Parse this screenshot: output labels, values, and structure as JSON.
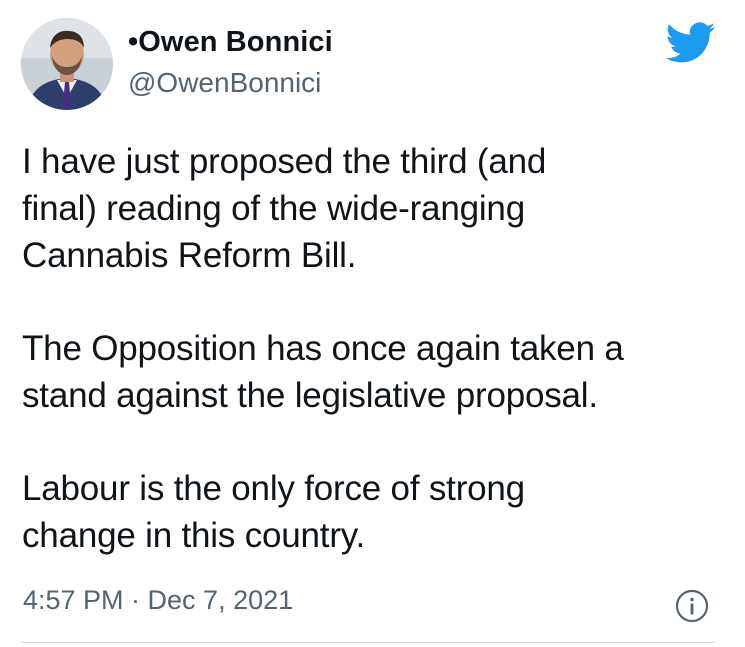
{
  "author": {
    "display_name": "•Owen Bonnici",
    "handle": "@OwenBonnici"
  },
  "tweet": {
    "paragraphs": [
      "I have just proposed the third (and\nfinal) reading of the wide-ranging\nCannabis Reform Bill.",
      "The Opposition has once again taken a\nstand against the legislative proposal.",
      "Labour is the only force of strong\nchange in this country."
    ],
    "timestamp": "4:57 PM · Dec 7, 2021"
  },
  "icons": {
    "brand": "twitter-bird-icon",
    "info": "info-icon"
  },
  "colors": {
    "brand_blue": "#1d9bf0",
    "text_primary": "#0f1419",
    "text_secondary": "#536471"
  }
}
